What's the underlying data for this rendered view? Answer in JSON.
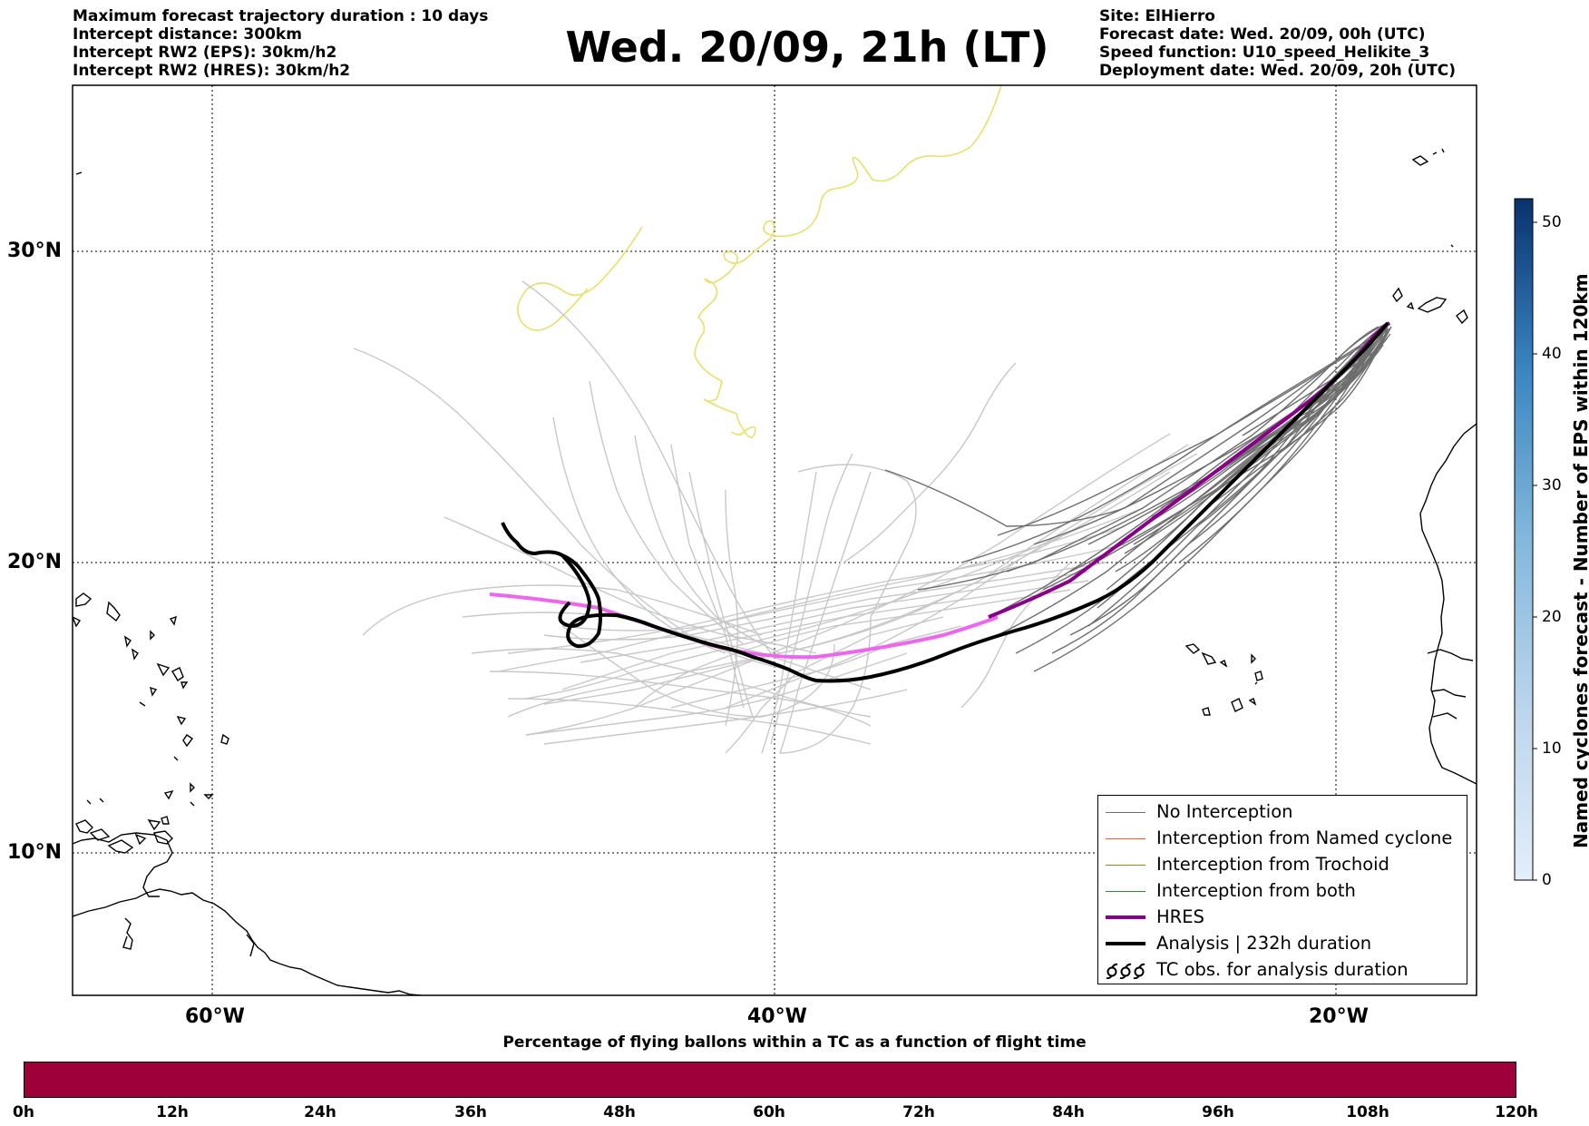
{
  "header": {
    "left_lines": [
      "Maximum forecast trajectory duration : 10 days",
      "Intercept distance: 300km",
      "Intercept RW2 (EPS):  30km/h2",
      "Intercept RW2 (HRES): 30km/h2"
    ],
    "title": "Wed. 20/09, 21h (LT)",
    "right_lines": [
      "Site: ElHierro",
      "Forecast date: Wed. 20/09, 00h (UTC)",
      "Speed function: U10_speed_Helikite_3",
      "Deployment date: Wed. 20/09, 20h (UTC)"
    ]
  },
  "map": {
    "lat_labels": [
      "30°N",
      "20°N",
      "10°N"
    ],
    "lon_labels": [
      "60°W",
      "40°W",
      "20°W"
    ],
    "colors": {
      "eps_member": "#c8c8c8",
      "no_interception": "#6e6e6e",
      "named_cyclone": "#e8602c",
      "trochoid": "#8b8b2a",
      "both": "#2e8b2e",
      "hres": "#8b008b",
      "hres_extension": "#ee66ee",
      "analysis": "#000000",
      "yellow_track": "#e8e06a"
    }
  },
  "legend": {
    "items": [
      {
        "label": "No Interception",
        "color": "#6e6e6e",
        "width": 1
      },
      {
        "label": "Interception from Named cyclone",
        "color": "#e8602c",
        "width": 1
      },
      {
        "label": "Interception from Trochoid",
        "color": "#8b8b2a",
        "width": 1
      },
      {
        "label": "Interception from both",
        "color": "#2e8b2e",
        "width": 1
      },
      {
        "label": "HRES",
        "color": "#8b008b",
        "width": 4
      },
      {
        "label": "Analysis | 232h duration",
        "color": "#000000",
        "width": 4
      },
      {
        "label": "TC obs. for analysis duration",
        "color": "#000000",
        "width": 0
      }
    ]
  },
  "colorbar_vertical": {
    "title": "Named cyclones forecast - Number of EPS within 120km",
    "ticks": [
      "0",
      "10",
      "20",
      "30",
      "40",
      "50"
    ]
  },
  "colorbar_horizontal": {
    "title": "Percentage of flying ballons within a TC as a function of flight time",
    "ticks": [
      "0h",
      "12h",
      "24h",
      "36h",
      "48h",
      "60h",
      "72h",
      "84h",
      "96h",
      "108h",
      "120h"
    ],
    "color": "#9e003a"
  }
}
